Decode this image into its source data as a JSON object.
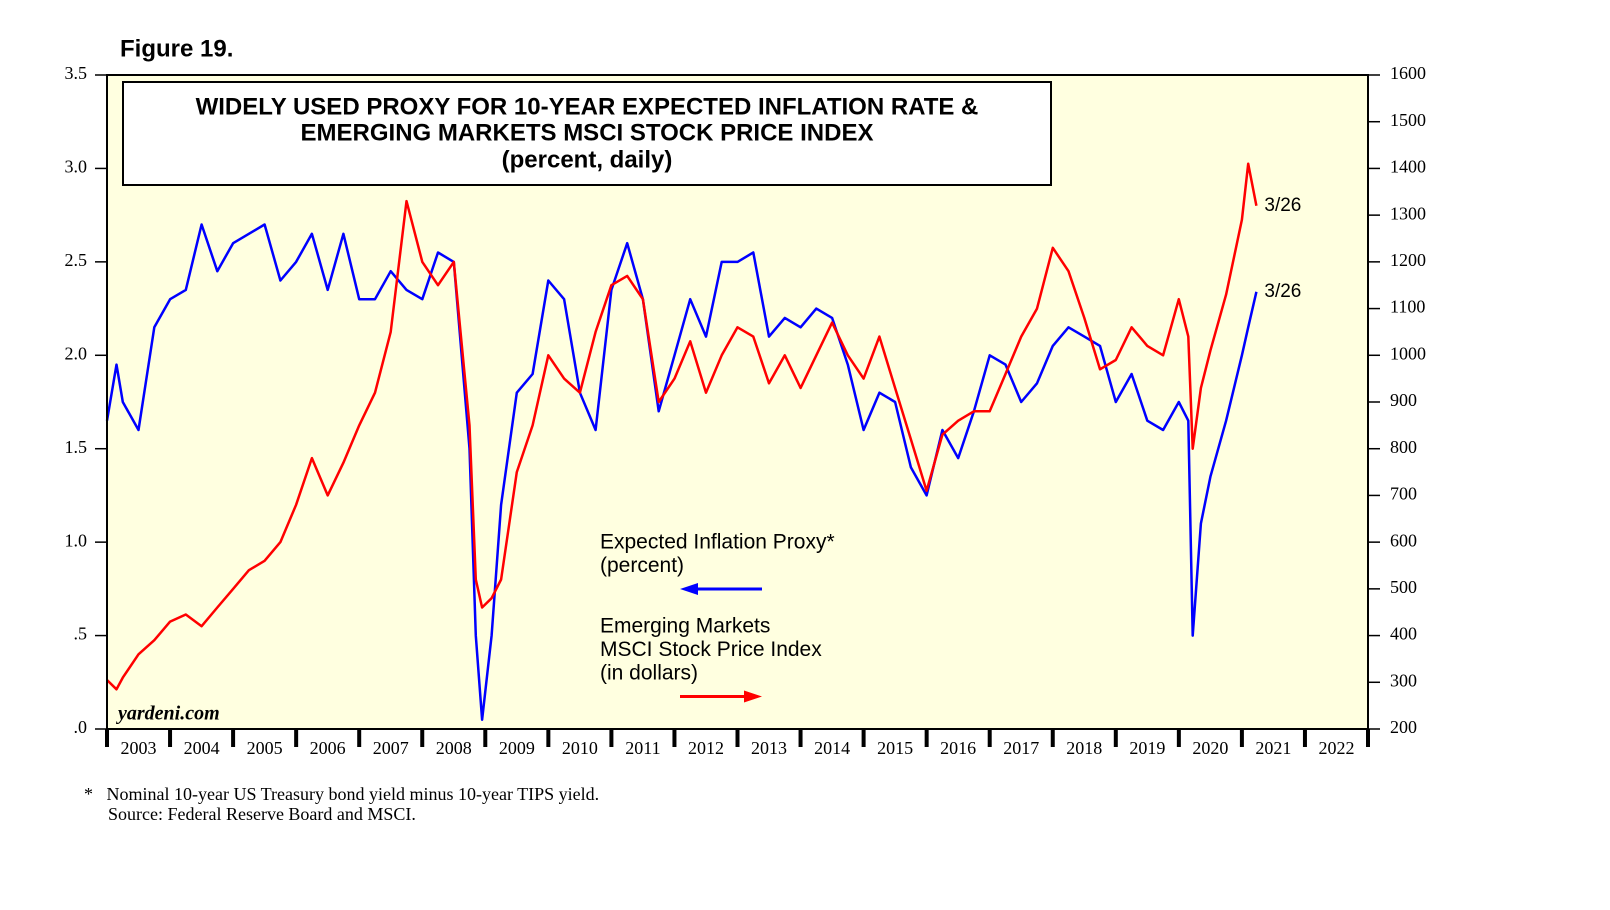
{
  "chart_data": {
    "type": "line",
    "figure_label": "Figure 19.",
    "title": [
      "WIDELY USED PROXY FOR 10-YEAR EXPECTED INFLATION RATE &",
      "EMERGING MARKETS MSCI STOCK PRICE INDEX",
      "(percent, daily)"
    ],
    "source_label": "yardeni.com",
    "footnotes": [
      "*   Nominal 10-year US Treasury bond yield minus 10-year TIPS yield.",
      "Source: Federal Reserve Board and MSCI."
    ],
    "background": "#ffffe0",
    "grid": false,
    "xlim": [
      2003,
      2023
    ],
    "xticks": [
      2003,
      2004,
      2005,
      2006,
      2007,
      2008,
      2009,
      2010,
      2011,
      2012,
      2013,
      2014,
      2015,
      2016,
      2017,
      2018,
      2019,
      2020,
      2021,
      2022
    ],
    "ylim": [
      0,
      3.5
    ],
    "yticks": [
      {
        "value": 0,
        "label": ".0"
      },
      {
        "value": 0.5,
        "label": ".5"
      },
      {
        "value": 1,
        "label": "1.0"
      },
      {
        "value": 1.5,
        "label": "1.5"
      },
      {
        "value": 2,
        "label": "2.0"
      },
      {
        "value": 2.5,
        "label": "2.5"
      },
      {
        "value": 3,
        "label": "3.0"
      },
      {
        "value": 3.5,
        "label": "3.5"
      }
    ],
    "y2lim": [
      200,
      1600
    ],
    "y2ticks": [
      200,
      300,
      400,
      500,
      600,
      700,
      800,
      900,
      1000,
      1100,
      1200,
      1300,
      1400,
      1500,
      1600
    ],
    "x": [
      2003,
      2003.15,
      2003.25,
      2003.5,
      2003.75,
      2004,
      2004.25,
      2004.5,
      2004.75,
      2005,
      2005.25,
      2005.5,
      2005.75,
      2006,
      2006.25,
      2006.5,
      2006.75,
      2007,
      2007.25,
      2007.5,
      2007.75,
      2008,
      2008.25,
      2008.5,
      2008.75,
      2008.85,
      2008.95,
      2009.1,
      2009.25,
      2009.5,
      2009.75,
      2010,
      2010.25,
      2010.5,
      2010.75,
      2011,
      2011.25,
      2011.5,
      2011.75,
      2012,
      2012.25,
      2012.5,
      2012.75,
      2013,
      2013.25,
      2013.5,
      2013.75,
      2014,
      2014.25,
      2014.5,
      2014.75,
      2015,
      2015.25,
      2015.5,
      2015.75,
      2016,
      2016.25,
      2016.5,
      2016.75,
      2017,
      2017.25,
      2017.5,
      2017.75,
      2018,
      2018.25,
      2018.5,
      2018.75,
      2019,
      2019.25,
      2019.5,
      2019.75,
      2020,
      2020.15,
      2020.22,
      2020.35,
      2020.5,
      2020.75,
      2021,
      2021.1,
      2021.23
    ],
    "series": [
      {
        "name_lines": [
          "Expected Inflation Proxy*",
          "(percent)"
        ],
        "color": "#0000ff",
        "axis": "y",
        "end_label": "3/26",
        "values": [
          1.65,
          1.95,
          1.75,
          1.6,
          2.15,
          2.3,
          2.35,
          2.7,
          2.45,
          2.6,
          2.65,
          2.7,
          2.4,
          2.5,
          2.65,
          2.35,
          2.65,
          2.3,
          2.3,
          2.45,
          2.35,
          2.3,
          2.55,
          2.5,
          1.5,
          0.5,
          0.05,
          0.5,
          1.2,
          1.8,
          1.9,
          2.4,
          2.3,
          1.8,
          1.6,
          2.35,
          2.6,
          2.3,
          1.7,
          2.0,
          2.3,
          2.1,
          2.5,
          2.5,
          2.55,
          2.1,
          2.2,
          2.15,
          2.25,
          2.2,
          1.95,
          1.6,
          1.8,
          1.75,
          1.4,
          1.25,
          1.6,
          1.45,
          1.7,
          2.0,
          1.95,
          1.75,
          1.85,
          2.05,
          2.15,
          2.1,
          2.05,
          1.75,
          1.9,
          1.65,
          1.6,
          1.75,
          1.65,
          0.5,
          1.1,
          1.35,
          1.65,
          2.0,
          2.15,
          2.34
        ]
      },
      {
        "name_lines": [
          "Emerging Markets",
          "MSCI Stock Price Index",
          "(in dollars)"
        ],
        "color": "#ff0000",
        "axis": "y2",
        "end_label": "3/26",
        "values": [
          305,
          285,
          310,
          360,
          390,
          430,
          445,
          420,
          460,
          500,
          540,
          560,
          600,
          680,
          780,
          700,
          770,
          850,
          920,
          1050,
          1330,
          1200,
          1150,
          1200,
          850,
          520,
          460,
          480,
          520,
          750,
          850,
          1000,
          950,
          920,
          1050,
          1150,
          1170,
          1120,
          900,
          950,
          1030,
          920,
          1000,
          1060,
          1040,
          940,
          1000,
          930,
          1000,
          1070,
          1000,
          950,
          1040,
          930,
          820,
          710,
          830,
          860,
          880,
          880,
          960,
          1040,
          1100,
          1230,
          1180,
          1080,
          970,
          990,
          1060,
          1020,
          1000,
          1120,
          1040,
          800,
          930,
          1010,
          1130,
          1290,
          1410,
          1320
        ]
      }
    ]
  }
}
